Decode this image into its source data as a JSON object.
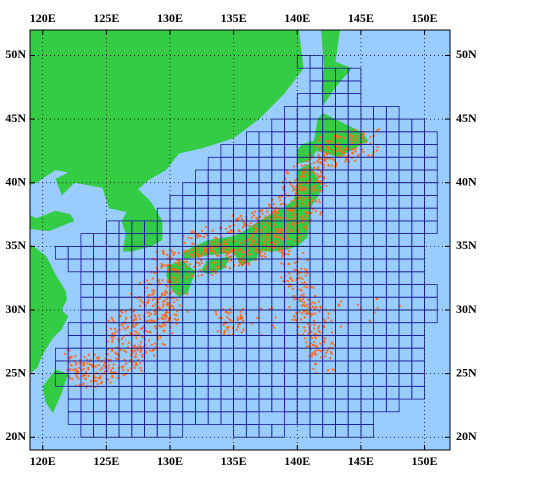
{
  "map": {
    "xlim": [
      119,
      152
    ],
    "ylim": [
      19,
      52
    ],
    "xticks": [
      {
        "value": 120,
        "label": "120E"
      },
      {
        "value": 125,
        "label": "125E"
      },
      {
        "value": 130,
        "label": "130E"
      },
      {
        "value": 135,
        "label": "135E"
      },
      {
        "value": 140,
        "label": "140E"
      },
      {
        "value": 145,
        "label": "145E"
      },
      {
        "value": 150,
        "label": "150E"
      }
    ],
    "yticks": [
      {
        "value": 20,
        "label": "20N"
      },
      {
        "value": 25,
        "label": "25N"
      },
      {
        "value": 30,
        "label": "30N"
      },
      {
        "value": 35,
        "label": "35N"
      },
      {
        "value": 40,
        "label": "40N"
      },
      {
        "value": 45,
        "label": "45N"
      },
      {
        "value": 50,
        "label": "50N"
      }
    ],
    "grid": true
  }
}
